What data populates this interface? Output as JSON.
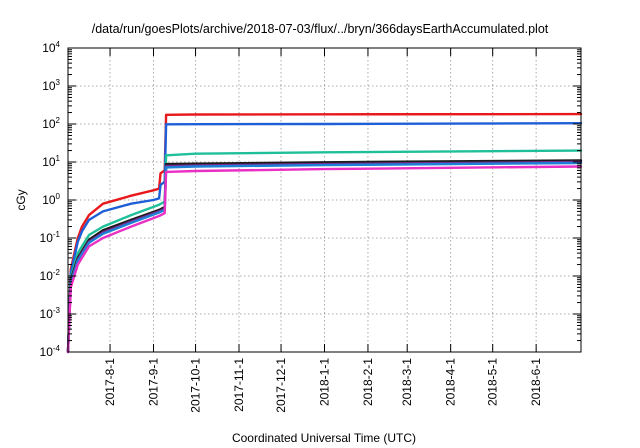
{
  "chart_data": {
    "type": "line",
    "title": "/data/run/goesPlots/archive/2018-07-03/flux/../bryn/366daysEarthAccumulated.plot",
    "xlabel": "Coordinated Universal Time (UTC)",
    "ylabel": "cGy",
    "yscale": "log",
    "ylim": [
      0.0001,
      10000
    ],
    "xlim": [
      "2017-07-02",
      "2018-07-03"
    ],
    "x_tick_labels": [
      "2017-8-1",
      "2017-9-1",
      "2017-10-1",
      "2017-11-1",
      "2017-12-1",
      "2018-1-1",
      "2018-2-1",
      "2018-3-1",
      "2018-4-1",
      "2018-5-1",
      "2018-6-1"
    ],
    "y_tick_labels": [
      {
        "base": "10",
        "exp": "-4"
      },
      {
        "base": "10",
        "exp": "-3"
      },
      {
        "base": "10",
        "exp": "-2"
      },
      {
        "base": "10",
        "exp": "-1"
      },
      {
        "base": "10",
        "exp": "0"
      },
      {
        "base": "10",
        "exp": "1"
      },
      {
        "base": "10",
        "exp": "2"
      },
      {
        "base": "10",
        "exp": "3"
      },
      {
        "base": "10",
        "exp": "4"
      }
    ],
    "grid": true,
    "legend": "none",
    "series": [
      {
        "color": "#e8191c",
        "points": [
          [
            "2017-07-02",
            0.0001
          ],
          [
            "2017-07-04",
            0.015
          ],
          [
            "2017-07-09",
            0.1
          ],
          [
            "2017-07-12",
            0.2
          ],
          [
            "2017-07-17",
            0.4
          ],
          [
            "2017-07-27",
            0.8
          ],
          [
            "2017-08-16",
            1.3
          ],
          [
            "2017-09-01",
            1.8
          ],
          [
            "2017-09-05",
            2.0
          ],
          [
            "2017-09-06",
            5.0
          ],
          [
            "2017-09-09",
            6.0
          ],
          [
            "2017-09-10",
            175
          ],
          [
            "2017-10-01",
            178
          ],
          [
            "2018-01-01",
            180
          ],
          [
            "2018-07-03",
            182
          ]
        ]
      },
      {
        "color": "#1e5fd8",
        "points": [
          [
            "2017-07-02",
            0.0001
          ],
          [
            "2017-07-04",
            0.012
          ],
          [
            "2017-07-09",
            0.08
          ],
          [
            "2017-07-12",
            0.15
          ],
          [
            "2017-07-17",
            0.3
          ],
          [
            "2017-07-27",
            0.5
          ],
          [
            "2017-08-16",
            0.8
          ],
          [
            "2017-09-01",
            1.0
          ],
          [
            "2017-09-05",
            1.1
          ],
          [
            "2017-09-06",
            2.5
          ],
          [
            "2017-09-09",
            3.0
          ],
          [
            "2017-09-10",
            98
          ],
          [
            "2017-10-01",
            99
          ],
          [
            "2018-01-01",
            100
          ],
          [
            "2018-07-03",
            105
          ]
        ]
      },
      {
        "color": "#1fbf9a",
        "points": [
          [
            "2017-07-02",
            0.0001
          ],
          [
            "2017-07-04",
            0.009
          ],
          [
            "2017-07-09",
            0.04
          ],
          [
            "2017-07-17",
            0.12
          ],
          [
            "2017-07-27",
            0.2
          ],
          [
            "2017-08-16",
            0.4
          ],
          [
            "2017-09-05",
            0.75
          ],
          [
            "2017-09-09",
            0.9
          ],
          [
            "2017-09-10",
            15
          ],
          [
            "2017-10-01",
            16.5
          ],
          [
            "2018-01-01",
            18
          ],
          [
            "2018-07-03",
            20
          ]
        ]
      },
      {
        "color": "#1a1a1a",
        "points": [
          [
            "2017-07-02",
            0.0001
          ],
          [
            "2017-07-04",
            0.008
          ],
          [
            "2017-07-09",
            0.03
          ],
          [
            "2017-07-17",
            0.09
          ],
          [
            "2017-07-27",
            0.16
          ],
          [
            "2017-08-16",
            0.3
          ],
          [
            "2017-09-05",
            0.55
          ],
          [
            "2017-09-09",
            0.65
          ],
          [
            "2017-09-10",
            8.8
          ],
          [
            "2017-10-01",
            9.0
          ],
          [
            "2018-01-01",
            9.8
          ],
          [
            "2018-07-03",
            11
          ]
        ]
      },
      {
        "color": "#7b2a8c",
        "points": [
          [
            "2017-07-02",
            0.0001
          ],
          [
            "2017-07-04",
            0.007
          ],
          [
            "2017-07-09",
            0.027
          ],
          [
            "2017-07-17",
            0.08
          ],
          [
            "2017-07-27",
            0.14
          ],
          [
            "2017-08-16",
            0.27
          ],
          [
            "2017-09-05",
            0.5
          ],
          [
            "2017-09-09",
            0.58
          ],
          [
            "2017-09-10",
            7.8
          ],
          [
            "2017-10-01",
            8.1
          ],
          [
            "2018-01-01",
            8.8
          ],
          [
            "2018-07-03",
            10
          ]
        ]
      },
      {
        "color": "#1d7fd6",
        "points": [
          [
            "2017-07-02",
            0.0001
          ],
          [
            "2017-07-04",
            0.0065
          ],
          [
            "2017-07-09",
            0.025
          ],
          [
            "2017-07-17",
            0.075
          ],
          [
            "2017-07-27",
            0.13
          ],
          [
            "2017-08-16",
            0.25
          ],
          [
            "2017-09-05",
            0.47
          ],
          [
            "2017-09-09",
            0.55
          ],
          [
            "2017-09-10",
            7.2
          ],
          [
            "2017-10-01",
            7.6
          ],
          [
            "2018-01-01",
            8.3
          ],
          [
            "2018-07-03",
            9.4
          ]
        ]
      },
      {
        "color": "#ea2fc5",
        "points": [
          [
            "2017-07-02",
            0.0001
          ],
          [
            "2017-07-04",
            0.005
          ],
          [
            "2017-07-09",
            0.02
          ],
          [
            "2017-07-17",
            0.06
          ],
          [
            "2017-07-27",
            0.1
          ],
          [
            "2017-08-16",
            0.2
          ],
          [
            "2017-09-05",
            0.38
          ],
          [
            "2017-09-09",
            0.45
          ],
          [
            "2017-09-10",
            5.5
          ],
          [
            "2017-10-01",
            5.8
          ],
          [
            "2018-01-01",
            6.5
          ],
          [
            "2018-07-03",
            7.6
          ]
        ]
      }
    ]
  }
}
